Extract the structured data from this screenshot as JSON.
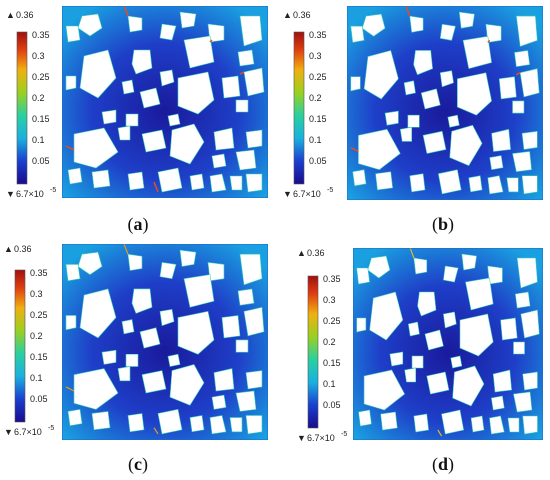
{
  "colorbar": {
    "max_label": "0.36",
    "min_label": "6.7×10",
    "min_exponent": "-5",
    "ticks": [
      "0.35",
      "0.3",
      "0.25",
      "0.2",
      "0.15",
      "0.1",
      "0.05"
    ],
    "max_marker": "▲",
    "min_marker": "▼"
  },
  "panels": [
    {
      "open": "(",
      "letter": "a",
      "close": ")"
    },
    {
      "open": "(",
      "letter": "b",
      "close": ")"
    },
    {
      "open": "(",
      "letter": "c",
      "close": ")"
    },
    {
      "open": "(",
      "letter": "d",
      "close": ")"
    }
  ],
  "colors": {
    "background_field": "#1a9fe0",
    "deep_field": "#1a1aa8",
    "particle": "#ffffff",
    "hot": "#e84d17"
  }
}
